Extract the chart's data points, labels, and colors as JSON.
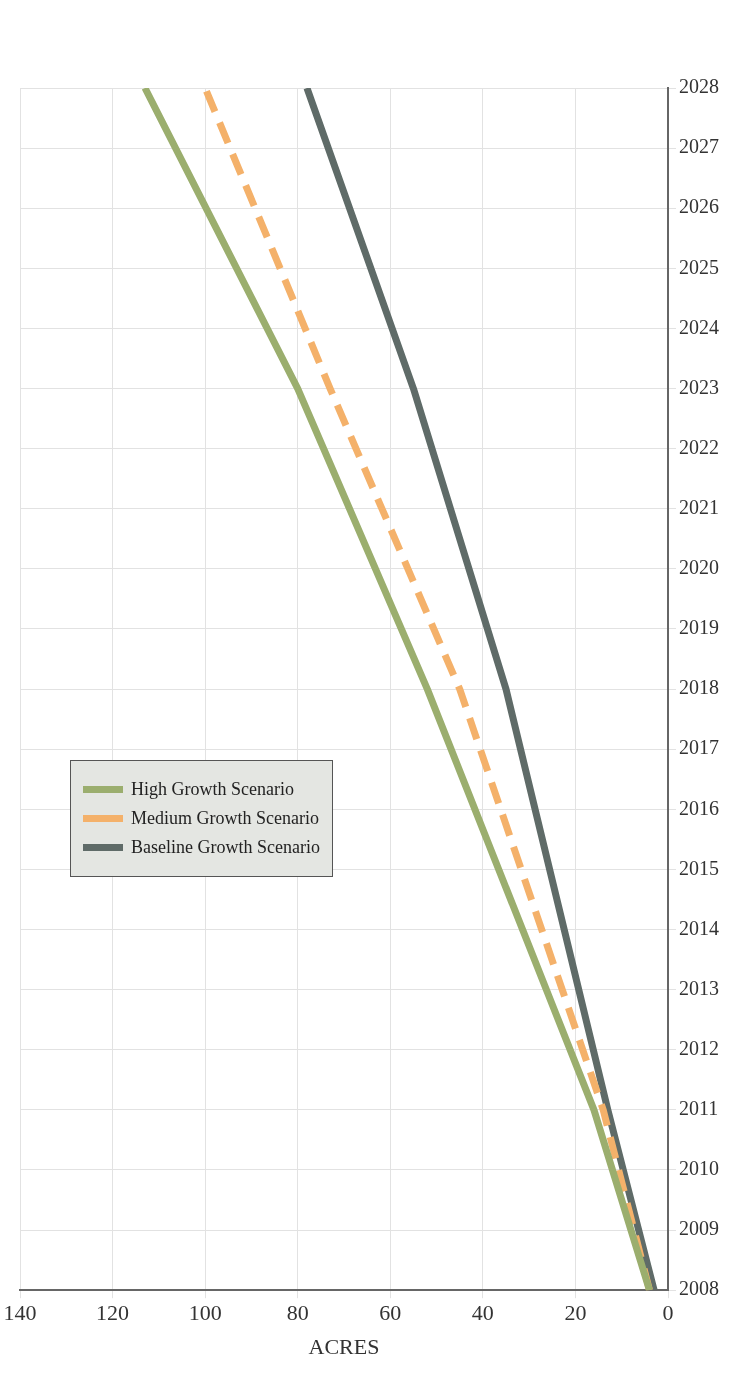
{
  "chart_data": {
    "type": "line",
    "xlabel": "ACRES",
    "ylim": [
      2008,
      2028
    ],
    "yticks": [
      2008,
      2009,
      2010,
      2011,
      2012,
      2013,
      2014,
      2015,
      2016,
      2017,
      2018,
      2019,
      2020,
      2021,
      2022,
      2023,
      2024,
      2025,
      2026,
      2027,
      2028
    ],
    "xlim": [
      140,
      0
    ],
    "xticks": [
      0,
      20,
      40,
      60,
      80,
      100,
      120,
      140
    ],
    "grid": true,
    "legend": "left",
    "marker": "none",
    "series": [
      {
        "name": "High Growth Scenario",
        "color": "#9bae6e",
        "line_style": "solid",
        "x": [
          4,
          16,
          52,
          80,
          113
        ],
        "values": [
          2008,
          2011,
          2018,
          2023,
          2028
        ]
      },
      {
        "name": "Medium Growth Scenario",
        "color": "#f4b16a",
        "line_style": "dashed",
        "x": [
          4,
          14,
          45,
          73,
          100
        ],
        "values": [
          2008,
          2011,
          2018,
          2023,
          2028
        ]
      },
      {
        "name": "Baseline Growth Scenario",
        "color": "#5f6b68",
        "line_style": "solid",
        "x": [
          3,
          13,
          35,
          55,
          78
        ],
        "values": [
          2008,
          2011,
          2018,
          2023,
          2028
        ]
      }
    ]
  }
}
